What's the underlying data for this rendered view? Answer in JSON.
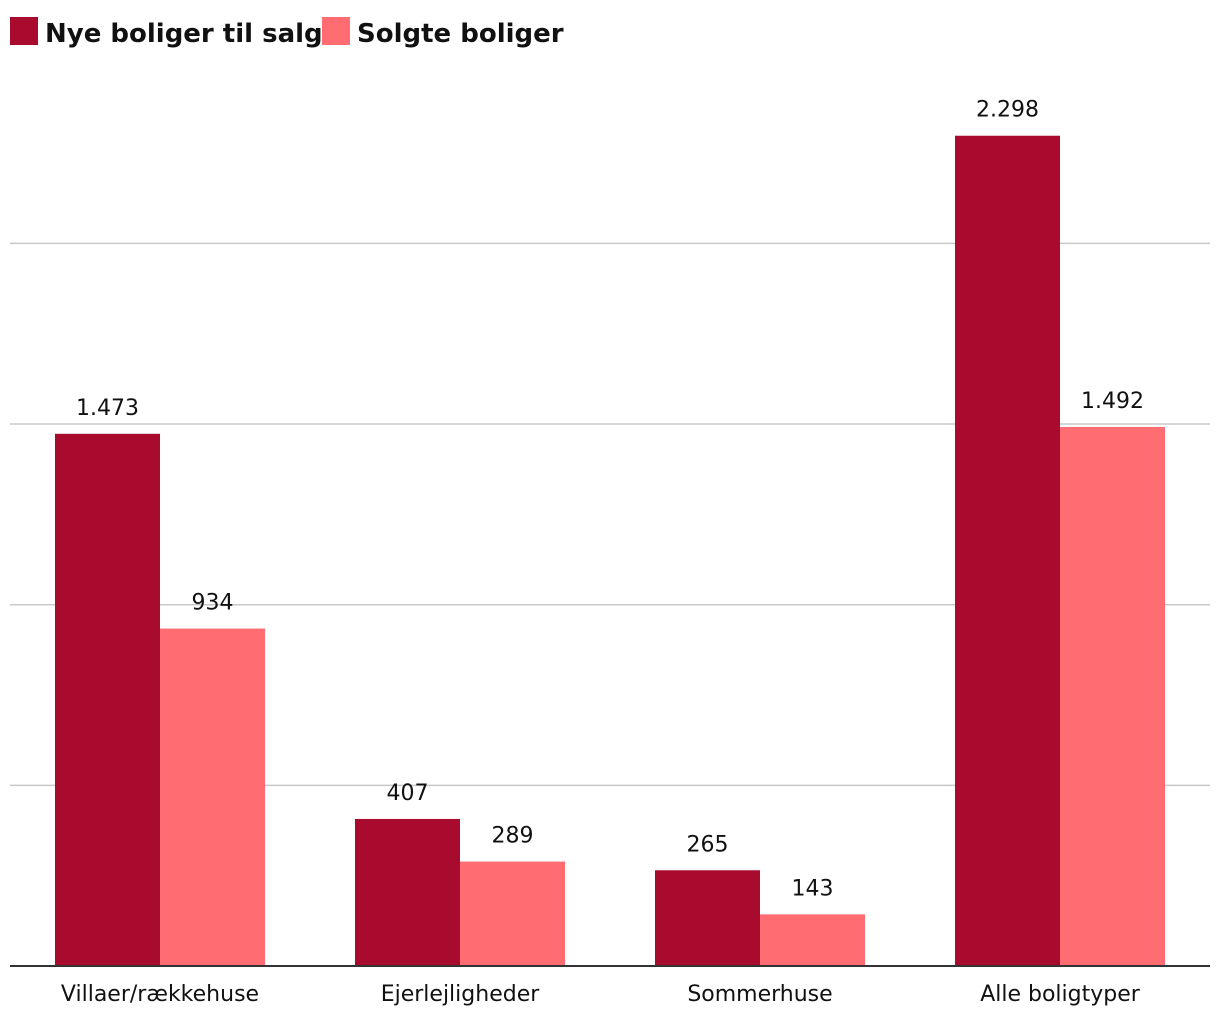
{
  "chart_data": {
    "type": "bar",
    "title": "",
    "xlabel": "",
    "ylabel": "",
    "categories": [
      "Villaer/rækkehuse",
      "Ejerlejligheder",
      "Sommerhuse",
      "Alle boligtyper"
    ],
    "series": [
      {
        "name": "Nye boliger til salg",
        "color": "#a80b2e",
        "values": [
          1473,
          407,
          265,
          2298
        ],
        "labels": [
          "1.473",
          "407",
          "265",
          "2.298"
        ]
      },
      {
        "name": "Solgte boliger",
        "color": "#ff6d73",
        "values": [
          934,
          289,
          143,
          1492
        ],
        "labels": [
          "934",
          "289",
          "143",
          "1.492"
        ]
      }
    ],
    "ylim": [
      0,
      2500
    ],
    "gridlines": [
      500,
      1000,
      1500,
      2000
    ],
    "grid": true,
    "legend_position": "top-left"
  }
}
